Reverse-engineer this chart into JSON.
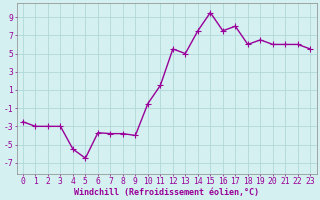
{
  "x": [
    0,
    1,
    2,
    3,
    4,
    5,
    6,
    7,
    8,
    9,
    10,
    11,
    12,
    13,
    14,
    15,
    16,
    17,
    18,
    19,
    20,
    21,
    22,
    23
  ],
  "y": [
    -2.5,
    -3.0,
    -3.0,
    -3.0,
    -5.5,
    -6.5,
    -3.7,
    -3.8,
    -3.8,
    -4.0,
    -0.5,
    1.5,
    5.5,
    5.0,
    7.5,
    9.5,
    7.5,
    8.0,
    6.0,
    6.5,
    6.0,
    6.0,
    6.0,
    5.5
  ],
  "line_color": "#990099",
  "marker": "D",
  "marker_size": 2.2,
  "bg_color": "#d4f0f0",
  "grid_color": "#b0d8d8",
  "xlabel": "Windchill (Refroidissement éolien,°C)",
  "ytick_labels": [
    "9",
    "7",
    "5",
    "3",
    "1",
    "-1",
    "-3",
    "-5",
    "-7"
  ],
  "ytick_vals": [
    9,
    7,
    5,
    3,
    1,
    -1,
    -3,
    -5,
    -7
  ],
  "xtick_labels": [
    "0",
    "1",
    "2",
    "3",
    "4",
    "5",
    "6",
    "7",
    "8",
    "9",
    "10",
    "11",
    "12",
    "13",
    "14",
    "15",
    "16",
    "17",
    "18",
    "19",
    "20",
    "21",
    "22",
    "23"
  ],
  "xtick_vals": [
    0,
    1,
    2,
    3,
    4,
    5,
    6,
    7,
    8,
    9,
    10,
    11,
    12,
    13,
    14,
    15,
    16,
    17,
    18,
    19,
    20,
    21,
    22,
    23
  ],
  "xlim": [
    -0.5,
    23.5
  ],
  "ylim": [
    -8.2,
    10.5
  ],
  "xlabel_fontsize": 6.0,
  "tick_fontsize": 5.8,
  "line_width": 1.0
}
